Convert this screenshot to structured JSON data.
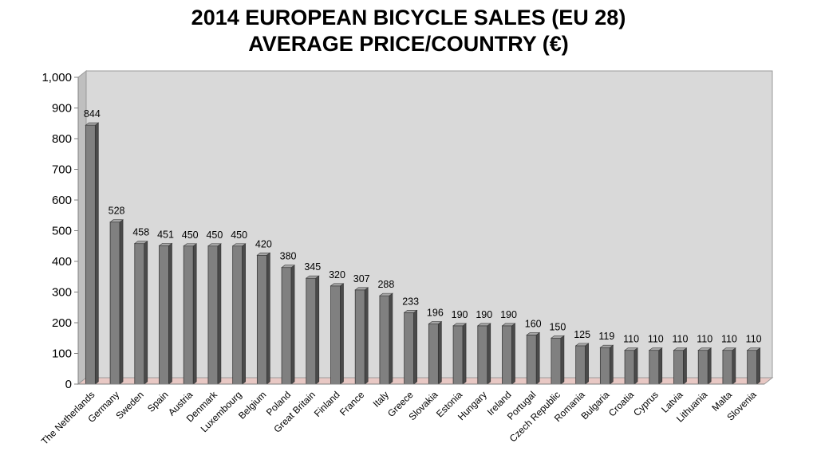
{
  "chart_data": {
    "type": "bar",
    "title_line1": "2014 EUROPEAN BICYCLE SALES (EU 28)",
    "title_line2": "AVERAGE PRICE/COUNTRY (€)",
    "xlabel": "",
    "ylabel": "",
    "ylim": [
      0,
      1000
    ],
    "yticks": [
      "0",
      "100",
      "200",
      "300",
      "400",
      "500",
      "600",
      "700",
      "800",
      "900",
      "1,000"
    ],
    "grid": false,
    "legend": "none",
    "colors": {
      "bar": "#808080",
      "bar_top": "#a6a6a6",
      "bar_side": "#4a4a4a",
      "wall": "#d9d9d9",
      "floor": "#e8c8c4"
    },
    "categories": [
      "The Netherlands",
      "Germany",
      "Sweden",
      "Spain",
      "Austria",
      "Denmark",
      "Luxembourg",
      "Belgium",
      "Poland",
      "Great Britain",
      "Finland",
      "France",
      "Italy",
      "Greece",
      "Slovakia",
      "Estonia",
      "Hungary",
      "Ireland",
      "Portugal",
      "Czech Republic",
      "Romania",
      "Bulgaria",
      "Croatia",
      "Cyprus",
      "Latvia",
      "Lithuania",
      "Malta",
      "Slovenia"
    ],
    "values": [
      844,
      528,
      458,
      451,
      450,
      450,
      450,
      420,
      380,
      345,
      320,
      307,
      288,
      233,
      196,
      190,
      190,
      190,
      160,
      150,
      125,
      119,
      110,
      110,
      110,
      110,
      110,
      110
    ]
  }
}
